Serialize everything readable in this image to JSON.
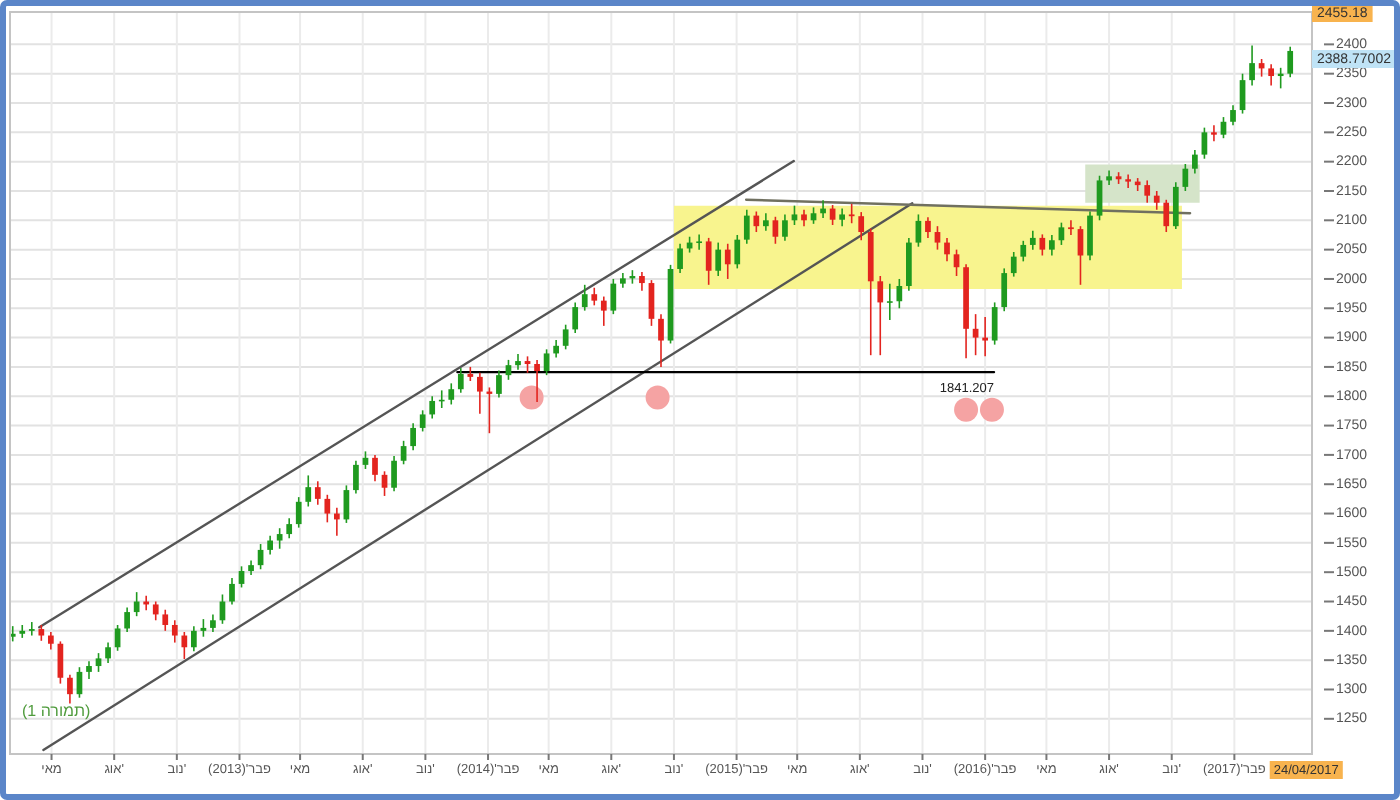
{
  "chart_data": {
    "type": "candlestick",
    "x": [
      "2012-03-05",
      "2012-03-19",
      "2012-04-02",
      "2012-04-16",
      "2012-04-30",
      "2012-05-14",
      "2012-05-28",
      "2012-06-11",
      "2012-06-25",
      "2012-07-09",
      "2012-07-23",
      "2012-08-06",
      "2012-08-20",
      "2012-09-03",
      "2012-09-17",
      "2012-10-01",
      "2012-10-15",
      "2012-10-29",
      "2012-11-12",
      "2012-11-26",
      "2012-12-10",
      "2012-12-24",
      "2013-01-07",
      "2013-01-21",
      "2013-02-04",
      "2013-02-18",
      "2013-03-04",
      "2013-03-18",
      "2013-04-01",
      "2013-04-15",
      "2013-04-29",
      "2013-05-13",
      "2013-05-27",
      "2013-06-10",
      "2013-06-24",
      "2013-07-08",
      "2013-07-22",
      "2013-08-05",
      "2013-08-19",
      "2013-09-02",
      "2013-09-16",
      "2013-09-30",
      "2013-10-14",
      "2013-10-28",
      "2013-11-11",
      "2013-11-25",
      "2013-12-09",
      "2013-12-23",
      "2014-01-06",
      "2014-01-20",
      "2014-02-03",
      "2014-02-17",
      "2014-03-03",
      "2014-03-17",
      "2014-03-31",
      "2014-04-14",
      "2014-04-28",
      "2014-05-12",
      "2014-05-26",
      "2014-06-09",
      "2014-06-23",
      "2014-07-07",
      "2014-07-21",
      "2014-08-04",
      "2014-08-18",
      "2014-09-01",
      "2014-09-15",
      "2014-09-29",
      "2014-10-13",
      "2014-10-27",
      "2014-11-10",
      "2014-11-24",
      "2014-12-08",
      "2014-12-22",
      "2015-01-05",
      "2015-01-19",
      "2015-02-02",
      "2015-02-16",
      "2015-03-02",
      "2015-03-16",
      "2015-03-30",
      "2015-04-13",
      "2015-04-27",
      "2015-05-11",
      "2015-05-25",
      "2015-06-08",
      "2015-06-22",
      "2015-07-06",
      "2015-07-20",
      "2015-08-03",
      "2015-08-17",
      "2015-08-31",
      "2015-09-14",
      "2015-09-28",
      "2015-10-12",
      "2015-10-26",
      "2015-11-09",
      "2015-11-23",
      "2015-12-07",
      "2015-12-21",
      "2016-01-04",
      "2016-01-18",
      "2016-02-01",
      "2016-02-15",
      "2016-02-29",
      "2016-03-14",
      "2016-03-28",
      "2016-04-11",
      "2016-04-25",
      "2016-05-09",
      "2016-05-23",
      "2016-06-06",
      "2016-06-20",
      "2016-07-04",
      "2016-07-18",
      "2016-08-01",
      "2016-08-15",
      "2016-08-29",
      "2016-09-12",
      "2016-09-26",
      "2016-10-10",
      "2016-10-24",
      "2016-11-07",
      "2016-11-21",
      "2016-12-05",
      "2016-12-19",
      "2017-01-02",
      "2017-01-16",
      "2017-01-30",
      "2017-02-13",
      "2017-02-27",
      "2017-03-13",
      "2017-03-27",
      "2017-04-10",
      "2017-04-24"
    ],
    "ohlc": [
      [
        1390,
        1408,
        1382,
        1395
      ],
      [
        1395,
        1410,
        1388,
        1400
      ],
      [
        1400,
        1415,
        1392,
        1403
      ],
      [
        1403,
        1410,
        1383,
        1392
      ],
      [
        1392,
        1398,
        1368,
        1378
      ],
      [
        1378,
        1382,
        1310,
        1320
      ],
      [
        1320,
        1325,
        1276,
        1292
      ],
      [
        1292,
        1338,
        1286,
        1330
      ],
      [
        1330,
        1348,
        1318,
        1340
      ],
      [
        1340,
        1362,
        1330,
        1353
      ],
      [
        1353,
        1380,
        1345,
        1372
      ],
      [
        1372,
        1410,
        1366,
        1404
      ],
      [
        1404,
        1440,
        1398,
        1432
      ],
      [
        1432,
        1466,
        1425,
        1450
      ],
      [
        1450,
        1460,
        1435,
        1445
      ],
      [
        1445,
        1450,
        1418,
        1428
      ],
      [
        1428,
        1436,
        1400,
        1410
      ],
      [
        1410,
        1418,
        1380,
        1392
      ],
      [
        1392,
        1398,
        1352,
        1372
      ],
      [
        1372,
        1408,
        1365,
        1400
      ],
      [
        1400,
        1420,
        1390,
        1405
      ],
      [
        1405,
        1428,
        1398,
        1418
      ],
      [
        1418,
        1462,
        1412,
        1450
      ],
      [
        1450,
        1490,
        1445,
        1480
      ],
      [
        1480,
        1510,
        1474,
        1502
      ],
      [
        1502,
        1520,
        1495,
        1512
      ],
      [
        1512,
        1548,
        1505,
        1538
      ],
      [
        1538,
        1562,
        1530,
        1554
      ],
      [
        1554,
        1575,
        1540,
        1565
      ],
      [
        1565,
        1592,
        1558,
        1582
      ],
      [
        1582,
        1628,
        1576,
        1620
      ],
      [
        1620,
        1665,
        1612,
        1645
      ],
      [
        1645,
        1655,
        1615,
        1625
      ],
      [
        1625,
        1632,
        1585,
        1600
      ],
      [
        1600,
        1610,
        1562,
        1590
      ],
      [
        1590,
        1648,
        1584,
        1640
      ],
      [
        1640,
        1690,
        1634,
        1683
      ],
      [
        1683,
        1706,
        1676,
        1695
      ],
      [
        1695,
        1700,
        1655,
        1666
      ],
      [
        1666,
        1672,
        1630,
        1644
      ],
      [
        1644,
        1698,
        1638,
        1690
      ],
      [
        1690,
        1724,
        1684,
        1715
      ],
      [
        1715,
        1754,
        1708,
        1746
      ],
      [
        1746,
        1776,
        1740,
        1769
      ],
      [
        1769,
        1800,
        1762,
        1792
      ],
      [
        1792,
        1810,
        1780,
        1794
      ],
      [
        1794,
        1822,
        1786,
        1812
      ],
      [
        1812,
        1848,
        1806,
        1838
      ],
      [
        1838,
        1850,
        1826,
        1833
      ],
      [
        1833,
        1840,
        1770,
        1808
      ],
      [
        1808,
        1815,
        1737,
        1804
      ],
      [
        1804,
        1844,
        1798,
        1836
      ],
      [
        1836,
        1862,
        1828,
        1853
      ],
      [
        1853,
        1872,
        1845,
        1860
      ],
      [
        1860,
        1868,
        1840,
        1855
      ],
      [
        1855,
        1862,
        1790,
        1843
      ],
      [
        1843,
        1880,
        1836,
        1873
      ],
      [
        1873,
        1896,
        1866,
        1886
      ],
      [
        1886,
        1922,
        1880,
        1914
      ],
      [
        1914,
        1960,
        1908,
        1952
      ],
      [
        1952,
        1990,
        1946,
        1974
      ],
      [
        1974,
        1985,
        1955,
        1963
      ],
      [
        1963,
        1970,
        1920,
        1946
      ],
      [
        1946,
        2000,
        1940,
        1992
      ],
      [
        1992,
        2010,
        1985,
        2001
      ],
      [
        2001,
        2015,
        1992,
        2005
      ],
      [
        2005,
        2012,
        1980,
        1993
      ],
      [
        1993,
        1998,
        1920,
        1932
      ],
      [
        1932,
        1940,
        1850,
        1895
      ],
      [
        1895,
        2024,
        1890,
        2017
      ],
      [
        2017,
        2060,
        2010,
        2052
      ],
      [
        2052,
        2072,
        2045,
        2062
      ],
      [
        2062,
        2076,
        2050,
        2064
      ],
      [
        2064,
        2070,
        1990,
        2014
      ],
      [
        2014,
        2062,
        2005,
        2050
      ],
      [
        2050,
        2060,
        2000,
        2025
      ],
      [
        2025,
        2075,
        2018,
        2067
      ],
      [
        2067,
        2118,
        2060,
        2108
      ],
      [
        2108,
        2115,
        2080,
        2090
      ],
      [
        2090,
        2112,
        2082,
        2100
      ],
      [
        2100,
        2106,
        2060,
        2072
      ],
      [
        2072,
        2110,
        2065,
        2100
      ],
      [
        2100,
        2125,
        2092,
        2110
      ],
      [
        2110,
        2118,
        2090,
        2100
      ],
      [
        2100,
        2122,
        2094,
        2112
      ],
      [
        2112,
        2134,
        2104,
        2120
      ],
      [
        2120,
        2126,
        2092,
        2101
      ],
      [
        2101,
        2120,
        2090,
        2110
      ],
      [
        2110,
        2128,
        2095,
        2107
      ],
      [
        2107,
        2114,
        2066,
        2080
      ],
      [
        2080,
        2086,
        1870,
        1996
      ],
      [
        1996,
        2005,
        1870,
        1960
      ],
      [
        1960,
        1992,
        1930,
        1962
      ],
      [
        1962,
        2000,
        1950,
        1988
      ],
      [
        1988,
        2070,
        1980,
        2062
      ],
      [
        2062,
        2110,
        2055,
        2099
      ],
      [
        2099,
        2105,
        2070,
        2080
      ],
      [
        2080,
        2090,
        2050,
        2062
      ],
      [
        2062,
        2070,
        2030,
        2042
      ],
      [
        2042,
        2050,
        2005,
        2020
      ],
      [
        2020,
        2025,
        1865,
        1915
      ],
      [
        1915,
        1940,
        1870,
        1900
      ],
      [
        1900,
        1935,
        1868,
        1895
      ],
      [
        1895,
        1960,
        1888,
        1952
      ],
      [
        1952,
        2018,
        1945,
        2010
      ],
      [
        2010,
        2046,
        2004,
        2038
      ],
      [
        2038,
        2065,
        2030,
        2058
      ],
      [
        2058,
        2082,
        2050,
        2070
      ],
      [
        2070,
        2076,
        2040,
        2050
      ],
      [
        2050,
        2075,
        2040,
        2066
      ],
      [
        2066,
        2096,
        2058,
        2088
      ],
      [
        2088,
        2100,
        2075,
        2085
      ],
      [
        2085,
        2090,
        1990,
        2040
      ],
      [
        2040,
        2115,
        2032,
        2108
      ],
      [
        2108,
        2176,
        2100,
        2168
      ],
      [
        2168,
        2185,
        2160,
        2175
      ],
      [
        2175,
        2182,
        2162,
        2170
      ],
      [
        2170,
        2178,
        2155,
        2166
      ],
      [
        2166,
        2172,
        2150,
        2160
      ],
      [
        2160,
        2168,
        2130,
        2142
      ],
      [
        2142,
        2150,
        2118,
        2130
      ],
      [
        2130,
        2135,
        2080,
        2090
      ],
      [
        2090,
        2165,
        2085,
        2157
      ],
      [
        2157,
        2196,
        2150,
        2188
      ],
      [
        2188,
        2220,
        2180,
        2212
      ],
      [
        2212,
        2258,
        2205,
        2250
      ],
      [
        2250,
        2262,
        2235,
        2246
      ],
      [
        2246,
        2276,
        2240,
        2268
      ],
      [
        2268,
        2296,
        2262,
        2288
      ],
      [
        2288,
        2350,
        2282,
        2339
      ],
      [
        2339,
        2398,
        2330,
        2368
      ],
      [
        2368,
        2375,
        2345,
        2359
      ],
      [
        2359,
        2366,
        2330,
        2346
      ],
      [
        2346,
        2360,
        2325,
        2350
      ],
      [
        2350,
        2396,
        2344,
        2388.77
      ]
    ],
    "colors": [
      "#1f9a1f",
      "#1f9a1f",
      "#1f9a1f",
      "#e3241f",
      "#e3241f",
      "#e3241f",
      "#e3241f",
      "#1f9a1f",
      "#1f9a1f",
      "#1f9a1f",
      "#1f9a1f",
      "#1f9a1f",
      "#1f9a1f",
      "#1f9a1f",
      "#e3241f",
      "#e3241f",
      "#e3241f",
      "#e3241f",
      "#e3241f",
      "#1f9a1f",
      "#1f9a1f",
      "#1f9a1f",
      "#1f9a1f",
      "#1f9a1f",
      "#1f9a1f",
      "#1f9a1f",
      "#1f9a1f",
      "#1f9a1f",
      "#1f9a1f",
      "#1f9a1f",
      "#1f9a1f",
      "#1f9a1f",
      "#e3241f",
      "#e3241f",
      "#e3241f",
      "#1f9a1f",
      "#1f9a1f",
      "#1f9a1f",
      "#e3241f",
      "#e3241f",
      "#1f9a1f",
      "#1f9a1f",
      "#1f9a1f",
      "#1f9a1f",
      "#1f9a1f",
      "#1f9a1f",
      "#1f9a1f",
      "#1f9a1f",
      "#e3241f",
      "#e3241f",
      "#e3241f",
      "#1f9a1f",
      "#1f9a1f",
      "#1f9a1f",
      "#e3241f",
      "#e3241f",
      "#1f9a1f",
      "#1f9a1f",
      "#1f9a1f",
      "#1f9a1f",
      "#1f9a1f",
      "#e3241f",
      "#e3241f",
      "#1f9a1f",
      "#1f9a1f",
      "#1f9a1f",
      "#e3241f",
      "#e3241f",
      "#e3241f",
      "#1f9a1f",
      "#1f9a1f",
      "#1f9a1f",
      "#1f9a1f",
      "#e3241f",
      "#1f9a1f",
      "#e3241f",
      "#1f9a1f",
      "#1f9a1f",
      "#e3241f",
      "#1f9a1f",
      "#e3241f",
      "#1f9a1f",
      "#1f9a1f",
      "#e3241f",
      "#1f9a1f",
      "#1f9a1f",
      "#e3241f",
      "#1f9a1f",
      "#e3241f",
      "#e3241f",
      "#e3241f",
      "#e3241f",
      "#1f9a1f",
      "#1f9a1f",
      "#1f9a1f",
      "#1f9a1f",
      "#e3241f",
      "#e3241f",
      "#e3241f",
      "#e3241f",
      "#e3241f",
      "#e3241f",
      "#e3241f",
      "#1f9a1f",
      "#1f9a1f",
      "#1f9a1f",
      "#1f9a1f",
      "#1f9a1f",
      "#e3241f",
      "#1f9a1f",
      "#1f9a1f",
      "#e3241f",
      "#e3241f",
      "#1f9a1f",
      "#1f9a1f",
      "#1f9a1f",
      "#e3241f",
      "#e3241f",
      "#e3241f",
      "#e3241f",
      "#e3241f",
      "#e3241f",
      "#1f9a1f",
      "#1f9a1f",
      "#1f9a1f",
      "#1f9a1f",
      "#e3241f",
      "#1f9a1f",
      "#1f9a1f",
      "#1f9a1f",
      "#1f9a1f",
      "#e3241f",
      "#e3241f",
      "#1f9a1f",
      "#1f9a1f"
    ],
    "series": [
      {
        "type": "line",
        "color": "#f8f48e",
        "x": [
          "2014-11-01",
          "2016-11-16"
        ],
        "values": [
          null,
          null
        ],
        "lower": [
          1983,
          1983
        ],
        "upper": [
          2125,
          2125
        ]
      },
      {
        "type": "line",
        "color": "#d5e4c9",
        "x": [
          "2016-06-27",
          "2016-12-12"
        ],
        "values": [
          null,
          null
        ],
        "lower": [
          2130,
          2130
        ],
        "upper": [
          2195,
          2195
        ]
      },
      {
        "type": "line",
        "color": "#555555",
        "x": [
          "2012-04-13",
          "2015-04-26"
        ],
        "values": [
          1406,
          2201
        ]
      },
      {
        "type": "line",
        "color": "#555555",
        "x": [
          "2012-04-19",
          "2015-10-17"
        ],
        "values": [
          1197,
          2129
        ]
      },
      {
        "type": "line",
        "color": "#000000",
        "x": [
          "2013-12-18",
          "2016-02-14"
        ],
        "values": [
          1841.207,
          1841.207
        ]
      },
      {
        "type": "line",
        "color": "#707060",
        "x": [
          "2015-02-15",
          "2016-11-28"
        ],
        "values": [
          2135,
          2112
        ]
      },
      {
        "type": "scatter",
        "color": "#f5a3a3",
        "marker": "circle",
        "x": [
          "2014-04-06",
          "2014-10-08",
          "2016-01-04",
          "2016-02-11"
        ],
        "values": [
          1798,
          1798,
          1777,
          1777
        ]
      }
    ],
    "xlim": [
      "2012-03-01",
      "2017-05-26"
    ],
    "ylim": [
      1190,
      2455.18
    ],
    "xticks": [
      {
        "value": "2012-05-01",
        "label": "מאי"
      },
      {
        "value": "2012-08-01",
        "label": "אוג'"
      },
      {
        "value": "2012-11-01",
        "label": "נוב'"
      },
      {
        "value": "2013-02-01",
        "label": "פבר'(2013)"
      },
      {
        "value": "2013-05-01",
        "label": "מאי"
      },
      {
        "value": "2013-08-01",
        "label": "אוג'"
      },
      {
        "value": "2013-11-01",
        "label": "נוב'"
      },
      {
        "value": "2014-02-01",
        "label": "פבר'(2014)"
      },
      {
        "value": "2014-05-01",
        "label": "מאי"
      },
      {
        "value": "2014-08-01",
        "label": "אוג'"
      },
      {
        "value": "2014-11-01",
        "label": "נוב'"
      },
      {
        "value": "2015-02-01",
        "label": "פבר'(2015)"
      },
      {
        "value": "2015-05-01",
        "label": "מאי"
      },
      {
        "value": "2015-08-01",
        "label": "אוג'"
      },
      {
        "value": "2015-11-01",
        "label": "נוב'"
      },
      {
        "value": "2016-02-01",
        "label": "פבר'(2016)"
      },
      {
        "value": "2016-05-01",
        "label": "מאי"
      },
      {
        "value": "2016-08-01",
        "label": "אוג'"
      },
      {
        "value": "2016-11-01",
        "label": "נוב'"
      },
      {
        "value": "2017-02-01",
        "label": "פבר'(2017)"
      }
    ],
    "yticks": [
      1250,
      1300,
      1350,
      1400,
      1450,
      1500,
      1550,
      1600,
      1650,
      1700,
      1750,
      1800,
      1850,
      1900,
      1950,
      2000,
      2050,
      2100,
      2150,
      2200,
      2250,
      2300,
      2350,
      2400
    ],
    "grid": true,
    "annotations": [
      "(תמורה 1)",
      "2455.18",
      "2388.77002",
      "24/04/2017",
      {
        "text": "1841.207",
        "x": "2016-02-14",
        "y": 1841.207
      }
    ]
  }
}
